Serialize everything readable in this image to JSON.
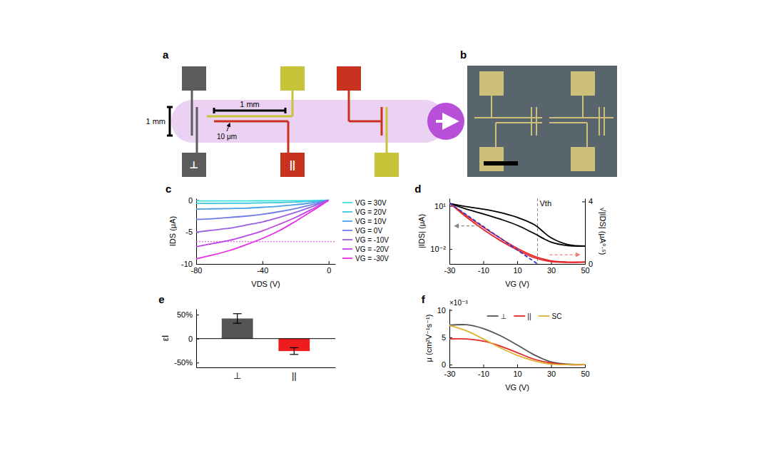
{
  "diagram": {
    "panel": "a",
    "labels": {
      "length_vertical": "1 mm",
      "length_horizontal": "1 mm",
      "gap": "10 μm",
      "perpendicular": "⊥",
      "parallel": "||"
    }
  },
  "photo": {
    "panel": "b"
  },
  "chart_data": [
    {
      "panel": "c",
      "type": "line",
      "x_label": "VDS (V)",
      "y_label": "IDS (μA)",
      "x": [
        0,
        -10,
        -20,
        -30,
        -40,
        -50,
        -60,
        -70,
        -80
      ],
      "series": [
        {
          "name": "VG = 30V",
          "color": "#3fe0e0",
          "values": [
            0,
            -0.04,
            -0.07,
            -0.08,
            -0.09,
            -0.1,
            -0.1,
            -0.1,
            -0.1
          ]
        },
        {
          "name": "VG = 20V",
          "color": "#3bc7dd",
          "values": [
            0,
            -0.15,
            -0.28,
            -0.36,
            -0.42,
            -0.46,
            -0.48,
            -0.5,
            -0.5
          ]
        },
        {
          "name": "VG = 10V",
          "color": "#4a9fe6",
          "values": [
            0,
            -0.4,
            -0.7,
            -0.95,
            -1.1,
            -1.25,
            -1.3,
            -1.35,
            -1.4
          ]
        },
        {
          "name": "VG = 0V",
          "color": "#6f7de6",
          "values": [
            0,
            -0.7,
            -1.3,
            -1.8,
            -2.2,
            -2.5,
            -2.7,
            -2.9,
            -3.0
          ]
        },
        {
          "name": "VG = -10V",
          "color": "#9b5fe6",
          "values": [
            0,
            -1.0,
            -1.9,
            -2.7,
            -3.4,
            -3.9,
            -4.4,
            -4.7,
            -5.0
          ]
        },
        {
          "name": "VG = -20V",
          "color": "#c143e6",
          "values": [
            0,
            -1.4,
            -2.7,
            -3.8,
            -4.8,
            -5.6,
            -6.3,
            -6.8,
            -7.3
          ]
        },
        {
          "name": "VG = -30V",
          "color": "#e62ee6",
          "values": [
            0,
            -1.7,
            -3.3,
            -4.8,
            -6.0,
            -7.0,
            -7.9,
            -8.6,
            -9.2
          ]
        }
      ],
      "hline": -6.5,
      "xlim": [
        -80,
        4
      ],
      "ylim": [
        -10,
        0.3
      ],
      "xticks": [
        -80,
        -40,
        0
      ],
      "yticks": [
        -10,
        -5,
        0
      ],
      "legend": "right"
    },
    {
      "panel": "d",
      "type": "line",
      "x_label": "VG (V)",
      "y_label": "|IDS| (μA)",
      "y2_label": "√|IDS| (μA⁰·⁵)",
      "x": [
        -30,
        -20,
        -10,
        0,
        10,
        20,
        30,
        40,
        50
      ],
      "series": [
        {
          "color": "#000000",
          "values": [
            15,
            9,
            6,
            3.5,
            1.6,
            0.5,
            0.06,
            0.02,
            0.016
          ]
        },
        {
          "color": "#000000",
          "values": [
            15,
            6,
            2.8,
            1.2,
            0.45,
            0.12,
            0.03,
            0.017,
            0.016
          ]
        },
        {
          "color": "#e8262a",
          "axis": "y2",
          "values": [
            3.9,
            3.0,
            2.2,
            1.5,
            0.9,
            0.4,
            0.15,
            0.1,
            0.12
          ]
        },
        {
          "color": "#e8262a",
          "axis": "y2",
          "values": [
            3.9,
            3.1,
            2.35,
            1.65,
            1.0,
            0.5,
            0.2,
            0.12,
            0.12
          ]
        },
        {
          "color": "#2a3cdd",
          "axis": "y2",
          "line_style": "dashed",
          "x": [
            -30,
            22
          ],
          "values": [
            3.9,
            0
          ]
        }
      ],
      "annotations": [
        {
          "text": "Vth",
          "x": 22
        }
      ],
      "log": "y",
      "xlim": [
        -30,
        50
      ],
      "ylim": [
        0.0009,
        34
      ],
      "y2lim": [
        0,
        4.2
      ],
      "xticks": [
        -30,
        -10,
        10,
        30,
        50
      ],
      "yticks": [
        {
          "value": 0.01,
          "label": "10⁻²"
        },
        {
          "value": 10,
          "label": "10¹"
        }
      ],
      "y2ticks": [
        0,
        4
      ]
    },
    {
      "panel": "e",
      "type": "bar",
      "y_label": "εI",
      "categories": [
        "⊥",
        "||"
      ],
      "values": [
        42,
        -26
      ],
      "errors": [
        10,
        7
      ],
      "colors": [
        "#555555",
        "#ee1c1c"
      ],
      "ylim": [
        -60,
        62
      ],
      "yticks": [
        {
          "value": -50,
          "label": "-50%"
        },
        0,
        {
          "value": 50,
          "label": "50%"
        }
      ]
    },
    {
      "panel": "f",
      "type": "line",
      "x_label": "VG (V)",
      "y_label": "μ (cm²V⁻¹s⁻¹)",
      "annotation": "×10⁻³",
      "x": [
        -30,
        -20,
        -10,
        0,
        10,
        20,
        30,
        40,
        50
      ],
      "series": [
        {
          "name": "⊥",
          "color": "#555555",
          "values": [
            0.0072,
            0.0073,
            0.0066,
            0.0053,
            0.0036,
            0.0018,
            0.0005,
            0.0001,
            0
          ]
        },
        {
          "name": "||",
          "color": "#e8262a",
          "values": [
            0.0047,
            0.0047,
            0.0043,
            0.0034,
            0.0022,
            0.001,
            0.0003,
            0,
            0
          ]
        },
        {
          "name": "SC",
          "color": "#e0b030",
          "values": [
            0.0072,
            0.0062,
            0.0047,
            0.0031,
            0.0017,
            0.0007,
            0.0001,
            0,
            0
          ]
        }
      ],
      "xlim": [
        -30,
        50
      ],
      "ylim": [
        -0.0005,
        0.0102
      ],
      "xticks": [
        -30,
        -10,
        10,
        30,
        50
      ],
      "yticks": [
        0,
        {
          "value": 0.005,
          "label": "5"
        },
        {
          "value": 0.01,
          "label": "10"
        }
      ],
      "legend": "top"
    }
  ]
}
